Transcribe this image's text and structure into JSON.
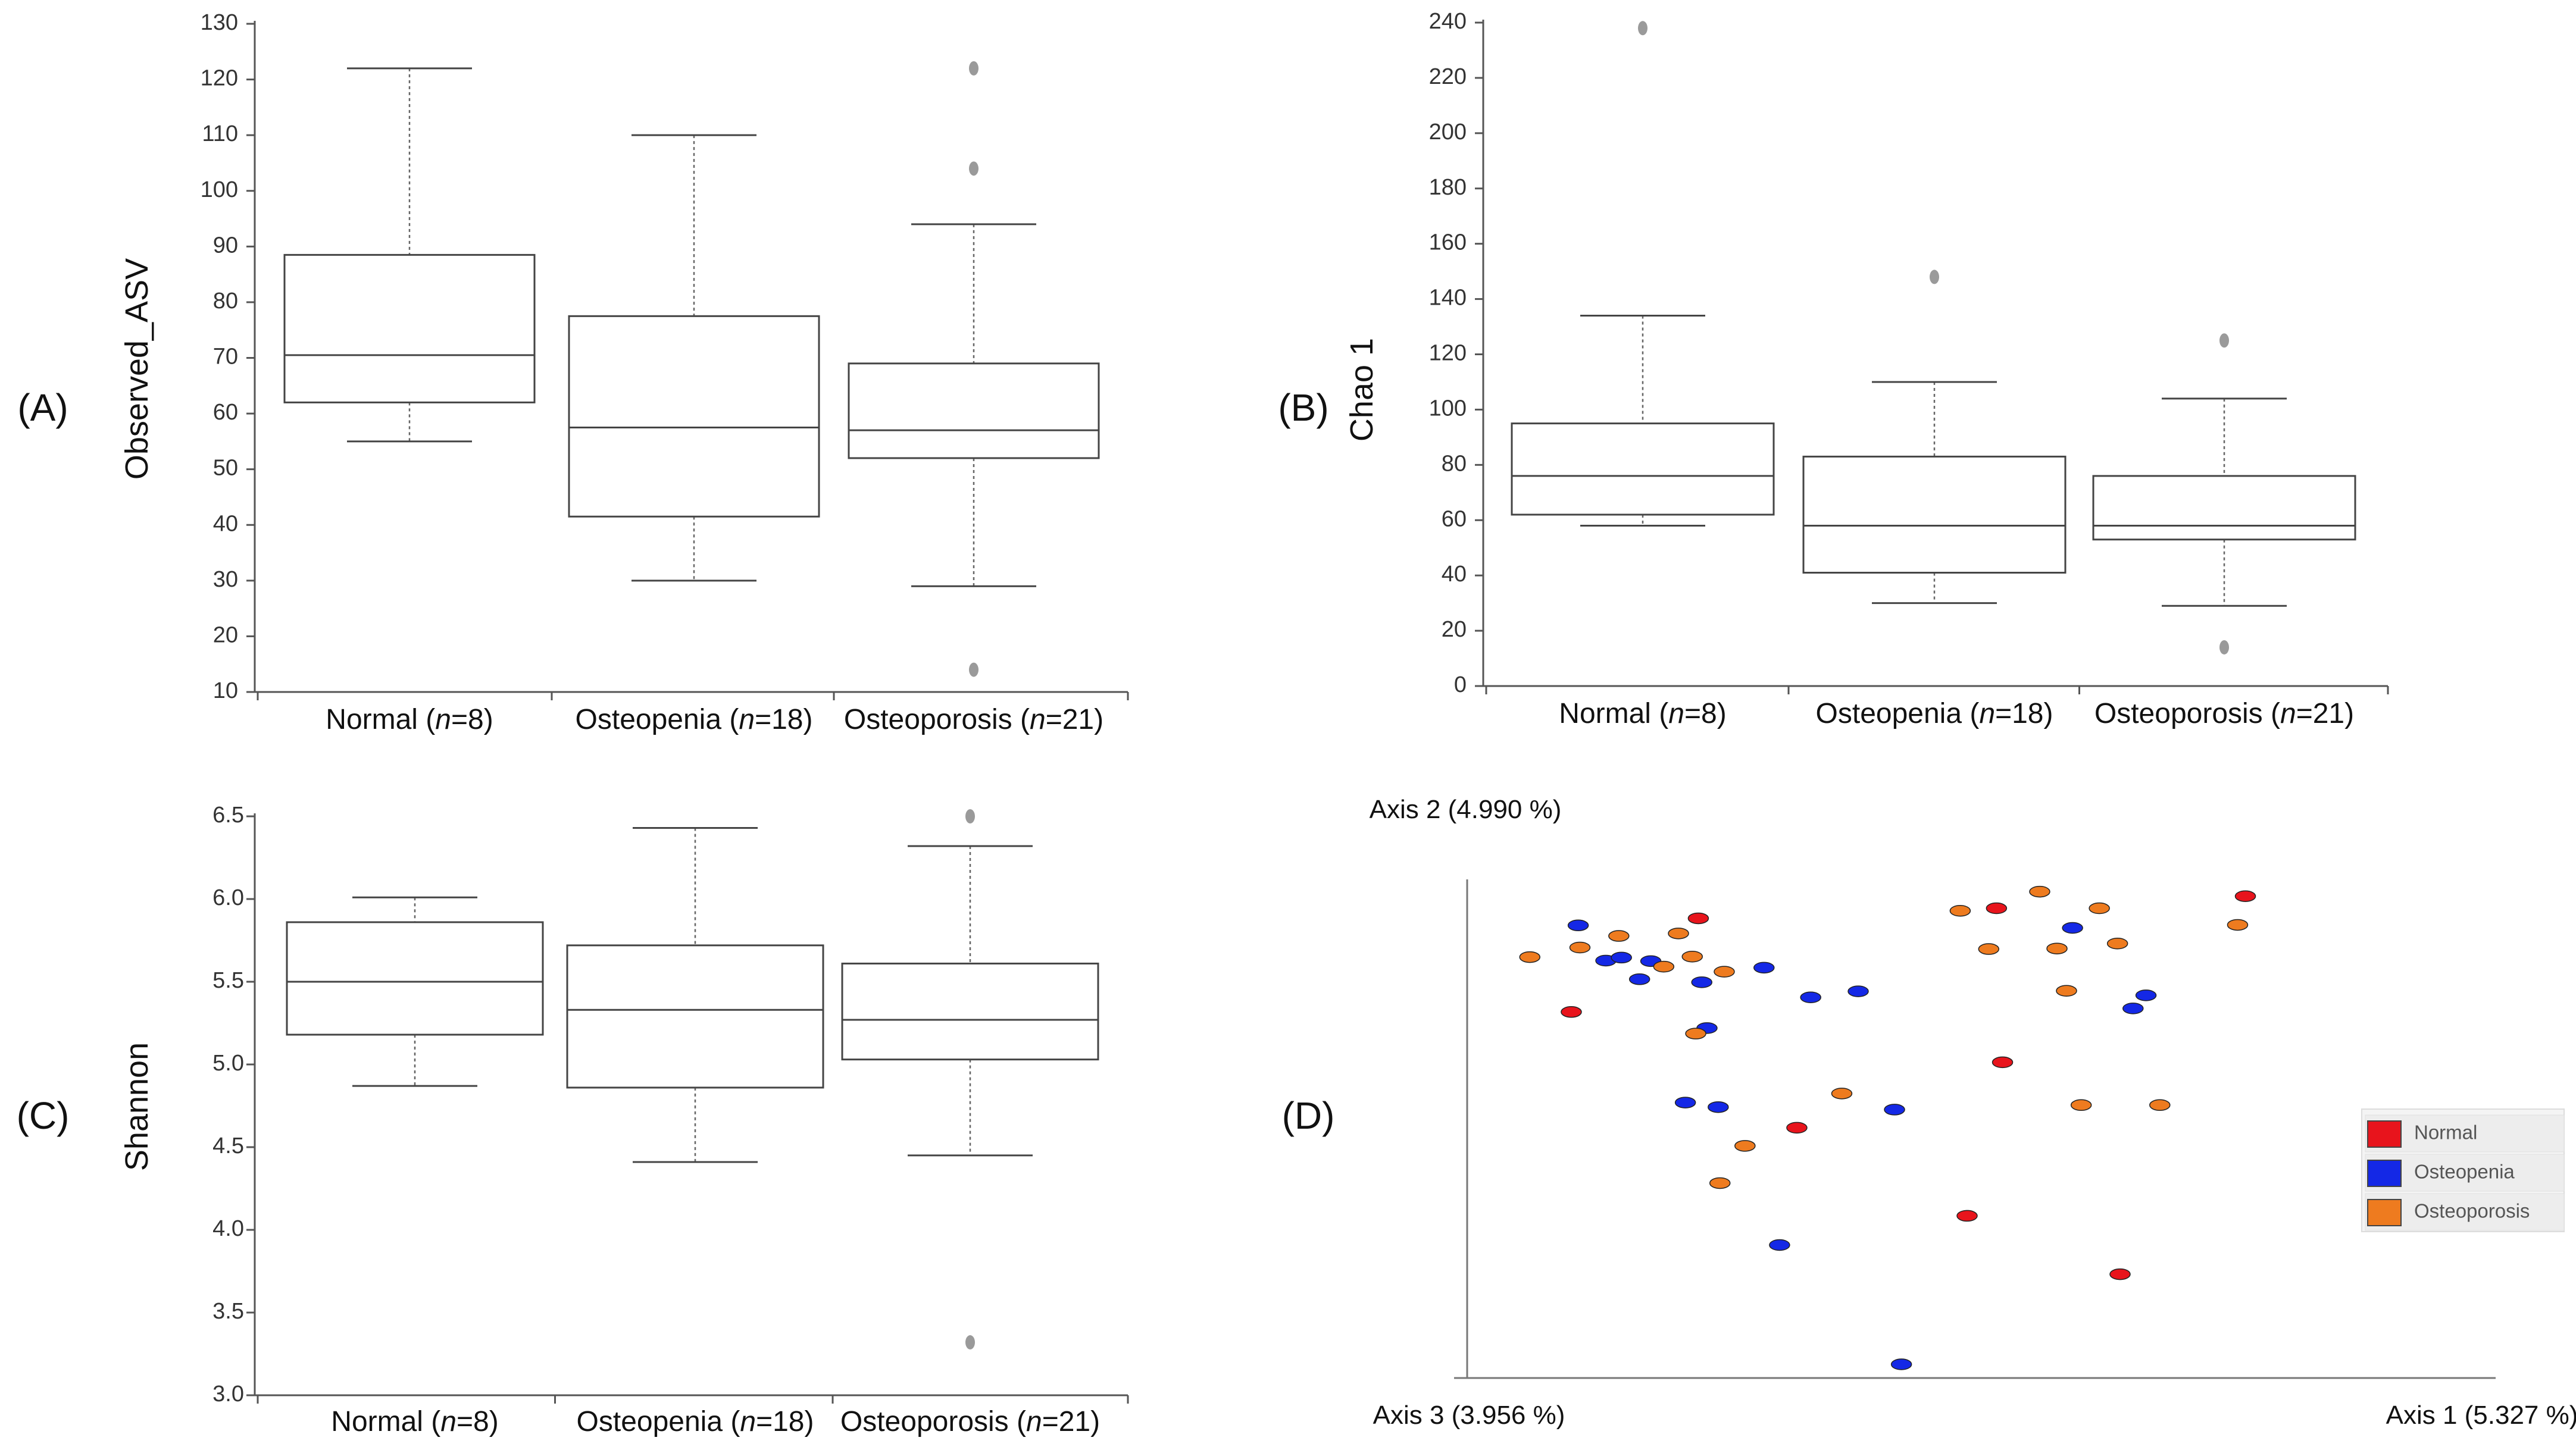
{
  "panel_labels": [
    "(A)",
    "(B)",
    "(C)",
    "(D)"
  ],
  "chart_data": [
    {
      "type": "box",
      "panel": "(A)",
      "ylabel": "Observed_ASV",
      "ylim": [
        10,
        130
      ],
      "yticks": [
        10,
        20,
        30,
        40,
        50,
        60,
        70,
        80,
        90,
        100,
        110,
        120,
        130
      ],
      "groups": [
        {
          "name": "Normal",
          "n": "8",
          "whisker_low": 55,
          "q1": 62,
          "median": 70.5,
          "q3": 88.5,
          "whisker_high": 122,
          "outliers": []
        },
        {
          "name": "Osteopenia",
          "n": "18",
          "whisker_low": 30,
          "q1": 41.5,
          "median": 57.5,
          "q3": 77.5,
          "whisker_high": 110,
          "outliers": []
        },
        {
          "name": "Osteoporosis",
          "n": "21",
          "whisker_low": 29,
          "q1": 52,
          "median": 57,
          "q3": 69,
          "whisker_high": 94,
          "outliers": [
            122,
            104,
            14
          ]
        }
      ]
    },
    {
      "type": "box",
      "panel": "(B)",
      "ylabel": "Chao 1",
      "ylim": [
        0,
        240
      ],
      "yticks": [
        0,
        20,
        40,
        60,
        80,
        100,
        120,
        140,
        160,
        180,
        200,
        220,
        240
      ],
      "groups": [
        {
          "name": "Normal",
          "n": "8",
          "whisker_low": 58,
          "q1": 62,
          "median": 76,
          "q3": 95,
          "whisker_high": 134,
          "outliers": [
            238
          ]
        },
        {
          "name": "Osteopenia",
          "n": "18",
          "whisker_low": 30,
          "q1": 41,
          "median": 58,
          "q3": 83,
          "whisker_high": 110,
          "outliers": [
            148
          ]
        },
        {
          "name": "Osteoporosis",
          "n": "21",
          "whisker_low": 29,
          "q1": 53,
          "median": 58,
          "q3": 76,
          "whisker_high": 104,
          "outliers": [
            125,
            14
          ]
        }
      ]
    },
    {
      "type": "box",
      "panel": "(C)",
      "ylabel": "Shannon",
      "ylim": [
        3.0,
        6.5
      ],
      "yticks": [
        "3.0",
        "3.5",
        "4.0",
        "4.5",
        "5.0",
        "5.5",
        "6.0",
        "6.5"
      ],
      "groups": [
        {
          "name": "Normal",
          "n": "8",
          "whisker_low": 4.87,
          "q1": 5.18,
          "median": 5.5,
          "q3": 5.86,
          "whisker_high": 6.01,
          "outliers": []
        },
        {
          "name": "Osteopenia",
          "n": "18",
          "whisker_low": 4.41,
          "q1": 4.86,
          "median": 5.33,
          "q3": 5.72,
          "whisker_high": 6.43,
          "outliers": []
        },
        {
          "name": "Osteoporosis",
          "n": "21",
          "whisker_low": 4.45,
          "q1": 5.03,
          "median": 5.27,
          "q3": 5.61,
          "whisker_high": 6.32,
          "outliers": [
            6.5,
            3.32
          ]
        }
      ]
    },
    {
      "type": "scatter",
      "panel": "(D)",
      "axis_labels": {
        "vertical": "Axis 2 (4.990 %)",
        "depth": "Axis 3 (3.956 %)",
        "horizontal": "Axis 1 (5.327 %)"
      },
      "legend": [
        {
          "label": "Normal",
          "color": "#e8141c"
        },
        {
          "label": "Osteopenia",
          "color": "#1428e6"
        },
        {
          "label": "Osteoporosis",
          "color": "#ee7b1f"
        }
      ],
      "projected_range": {
        "x": [
          0,
          100
        ],
        "y": [
          0,
          100
        ]
      },
      "points": {
        "Normal": [
          [
            8.4,
            70.0
          ],
          [
            23.1,
            88.6
          ],
          [
            34.5,
            47.0
          ],
          [
            57.6,
            90.6
          ],
          [
            58.3,
            60.0
          ],
          [
            54.2,
            29.5
          ],
          [
            71.9,
            17.9
          ],
          [
            86.4,
            93.0
          ]
        ],
        "Osteopenia": [
          [
            9.2,
            87.2
          ],
          [
            12.4,
            80.2
          ],
          [
            14.2,
            80.8
          ],
          [
            16.3,
            76.5
          ],
          [
            17.6,
            80.1
          ],
          [
            23.5,
            75.9
          ],
          [
            24.1,
            66.8
          ],
          [
            21.6,
            52.0
          ],
          [
            25.4,
            51.1
          ],
          [
            30.7,
            78.8
          ],
          [
            36.1,
            72.9
          ],
          [
            41.6,
            74.1
          ],
          [
            45.8,
            50.6
          ],
          [
            32.5,
            23.7
          ],
          [
            46.6,
            0.0
          ],
          [
            66.4,
            86.7
          ],
          [
            73.4,
            70.7
          ],
          [
            74.9,
            73.3
          ]
        ],
        "Osteoporosis": [
          [
            3.6,
            80.9
          ],
          [
            9.4,
            82.8
          ],
          [
            13.9,
            85.1
          ],
          [
            19.1,
            79.0
          ],
          [
            20.8,
            85.6
          ],
          [
            22.4,
            81.0
          ],
          [
            22.8,
            65.7
          ],
          [
            26.1,
            78.0
          ],
          [
            28.5,
            43.4
          ],
          [
            25.6,
            36.0
          ],
          [
            39.7,
            53.8
          ],
          [
            53.4,
            90.1
          ],
          [
            56.7,
            82.5
          ],
          [
            62.6,
            93.9
          ],
          [
            64.6,
            82.6
          ],
          [
            65.7,
            74.2
          ],
          [
            67.4,
            51.5
          ],
          [
            69.5,
            90.6
          ],
          [
            71.6,
            83.6
          ],
          [
            76.5,
            51.5
          ],
          [
            85.5,
            87.3
          ]
        ]
      }
    }
  ]
}
